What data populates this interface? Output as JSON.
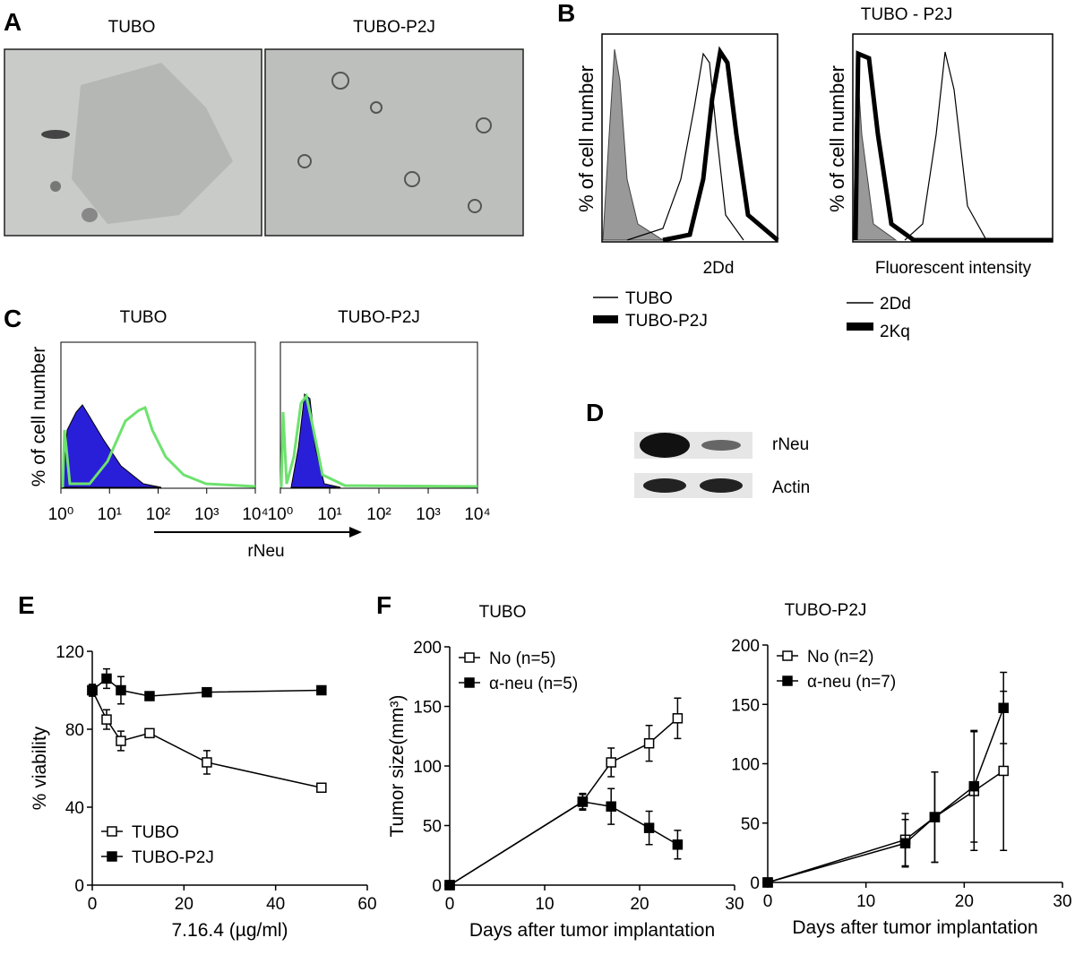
{
  "panel_labels": [
    "A",
    "B",
    "C",
    "D",
    "E",
    "F"
  ],
  "panel_a": {
    "labels": [
      "TUBO",
      "TUBO-P2J"
    ]
  },
  "panel_b": {
    "title": "TUBO - P2J",
    "y_label": "% of cell number",
    "x_labels": [
      "2Dd",
      "Fluorescent intensity"
    ],
    "legend_left": [
      "TUBO",
      "TUBO-P2J"
    ],
    "legend_right": [
      "2Dd",
      "2Kq"
    ]
  },
  "panel_c": {
    "titles": [
      "TUBO",
      "TUBO-P2J"
    ],
    "y_label": "% of cell number",
    "x_label": "rNeu",
    "xscale": "log",
    "xlim": [
      1,
      10000
    ],
    "xticks": [
      {
        "value": 1,
        "label": "10⁰"
      },
      {
        "value": 10,
        "label": "10¹"
      },
      {
        "value": 100,
        "label": "10²"
      },
      {
        "value": 1000,
        "label": "10³"
      },
      {
        "value": 10000,
        "label": "10⁴"
      }
    ]
  },
  "panel_d": {
    "labels": [
      "rNeu",
      "Actin"
    ]
  },
  "chart_data": [
    {
      "type": "line",
      "xlabel": "7.16.4 (µg/ml)",
      "ylabel": "% viability",
      "x": [
        0,
        3.125,
        6.25,
        12.5,
        25,
        50
      ],
      "xlim": [
        0,
        60
      ],
      "xticks": [
        0,
        20,
        40,
        60
      ],
      "ylim": [
        0,
        120
      ],
      "yticks": [
        0,
        40,
        80,
        120
      ],
      "legend": "lower left",
      "series": [
        {
          "name": "TUBO",
          "color": "#000000",
          "marker": "open",
          "values": [
            100,
            85,
            74,
            78,
            63,
            50
          ],
          "errors": [
            3,
            5,
            5,
            2,
            6,
            2
          ]
        },
        {
          "name": "TUBO-P2J",
          "color": "#000000",
          "marker": "filled",
          "values": [
            100,
            106,
            100,
            97,
            99,
            100
          ],
          "errors": [
            3,
            5,
            7,
            2,
            2,
            2
          ]
        }
      ]
    },
    {
      "type": "line",
      "title": "TUBO",
      "xlabel": "Days after tumor implantation",
      "ylabel": "Tumor size(mm³)",
      "x": [
        0,
        14,
        17,
        21,
        24
      ],
      "xlim": [
        0,
        30
      ],
      "xticks": [
        0,
        10,
        20,
        30
      ],
      "ylim": [
        0,
        200
      ],
      "yticks": [
        0,
        50,
        100,
        150,
        200
      ],
      "legend": "upper left",
      "series": [
        {
          "name": "No (n=5)",
          "color": "#000000",
          "marker": "open",
          "values": [
            0,
            70,
            103,
            119,
            140
          ],
          "errors": [
            0,
            6,
            12,
            15,
            17
          ]
        },
        {
          "name": "α-neu (n=5)",
          "color": "#000000",
          "marker": "filled",
          "values": [
            0,
            70,
            66,
            48,
            34
          ],
          "errors": [
            0,
            7,
            15,
            14,
            12
          ]
        }
      ]
    },
    {
      "type": "line",
      "title": "TUBO-P2J",
      "xlabel": "Days after tumor implantation",
      "x": [
        0,
        14,
        17,
        21,
        24
      ],
      "xlim": [
        0,
        30
      ],
      "xticks": [
        0,
        10,
        20,
        30
      ],
      "ylim": [
        0,
        200
      ],
      "yticks": [
        0,
        50,
        100,
        150,
        200
      ],
      "legend": "upper left",
      "series": [
        {
          "name": "No (n=2)",
          "color": "#000000",
          "marker": "open",
          "values": [
            0,
            36,
            55,
            77,
            94
          ],
          "errors": [
            0,
            22,
            38,
            50,
            67
          ]
        },
        {
          "name": "α-neu (n=7)",
          "color": "#000000",
          "marker": "filled",
          "values": [
            0,
            33,
            55,
            81,
            147
          ],
          "errors": [
            0,
            20,
            38,
            47,
            30
          ]
        }
      ]
    }
  ]
}
